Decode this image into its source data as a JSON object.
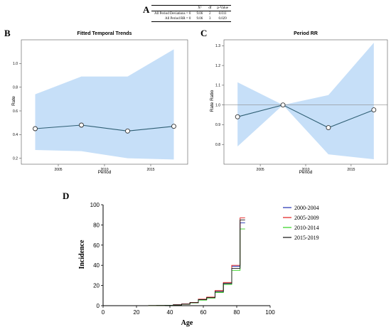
{
  "panel_letters": {
    "a": "A",
    "b": "B",
    "c": "C",
    "d": "D"
  },
  "stat_table": {
    "headers": [
      "",
      "X²",
      "df",
      "p-Value"
    ],
    "rows": [
      [
        "All Period Deviations = 0",
        "9.06",
        "2",
        "0.011"
      ],
      [
        "All Period RR = 0",
        "9.06",
        "3",
        "0.029"
      ]
    ]
  },
  "chart_data": [
    {
      "type": "line",
      "title": "Fitted Temporal Trends",
      "xlabel": "Period",
      "ylabel": "Rate",
      "x": [
        2002.5,
        2007.5,
        2012.5,
        2017.5
      ],
      "xlim": [
        2001,
        2019
      ],
      "ylim": [
        0.15,
        1.2
      ],
      "xticks": [
        2005,
        2010,
        2015
      ],
      "yticks": [
        0.2,
        0.4,
        0.6,
        0.8,
        1.0
      ],
      "ytick_labels": [
        "0.2",
        "0.4",
        "0.6",
        "0.8",
        "1.0"
      ],
      "series": [
        {
          "values": [
            0.45,
            0.48,
            0.43,
            0.47
          ],
          "lower": [
            0.27,
            0.26,
            0.2,
            0.19
          ],
          "upper": [
            0.74,
            0.89,
            0.89,
            1.12
          ]
        }
      ],
      "line_color": "#2f5f74",
      "band_color": "#c6dff8",
      "reference_line": null,
      "grid": false
    },
    {
      "type": "line",
      "title": "Period RR",
      "xlabel": "Period",
      "ylabel": "Rate Ratio",
      "x": [
        2002.5,
        2007.5,
        2012.5,
        2017.5
      ],
      "xlim": [
        2001,
        2019
      ],
      "ylim": [
        0.7,
        1.33
      ],
      "xticks": [
        2005,
        2010,
        2015
      ],
      "yticks": [
        0.8,
        0.9,
        1.0,
        1.1,
        1.2,
        1.3
      ],
      "ytick_labels": [
        "0.8",
        "0.9",
        "1.0",
        "1.1",
        "1.2",
        "1.3"
      ],
      "series": [
        {
          "values": [
            0.94,
            1.0,
            0.885,
            0.975
          ],
          "lower": [
            0.79,
            1.0,
            0.75,
            0.725
          ],
          "upper": [
            1.115,
            1.0,
            1.05,
            1.315
          ]
        }
      ],
      "line_color": "#2f5f74",
      "band_color": "#c6dff8",
      "reference_line": 1.0,
      "grid": false
    },
    {
      "type": "line",
      "title": "",
      "xlabel": "Age",
      "ylabel": "Incidence",
      "xlim": [
        0,
        100
      ],
      "ylim": [
        0,
        100
      ],
      "xticks": [
        0,
        20,
        40,
        60,
        80,
        100
      ],
      "yticks": [
        0,
        20,
        40,
        60,
        80,
        100
      ],
      "x": [
        27,
        32,
        37,
        42,
        47,
        52,
        57,
        62,
        67,
        72,
        77,
        82,
        85
      ],
      "step": "post",
      "series": [
        {
          "name": "2000-2004",
          "color": "#1f2fb0",
          "values": [
            0.1,
            0.2,
            0.4,
            0.8,
            1.6,
            3.0,
            6.0,
            8.0,
            14.0,
            22.0,
            39.0,
            82.0,
            82.0
          ]
        },
        {
          "name": "2005-2009",
          "color": "#e11b1b",
          "values": [
            0.1,
            0.2,
            0.4,
            0.9,
            1.7,
            3.2,
            6.5,
            8.5,
            15.0,
            23.0,
            40.0,
            87.0,
            87.0
          ]
        },
        {
          "name": "2010-2014",
          "color": "#2fd11d",
          "values": [
            0.1,
            0.2,
            0.3,
            0.7,
            1.4,
            2.8,
            5.5,
            7.5,
            13.0,
            21.0,
            35.0,
            76.0,
            76.0
          ]
        },
        {
          "name": "2015-2019",
          "color": "#111111",
          "values": [
            0.1,
            0.2,
            0.4,
            0.8,
            1.5,
            3.0,
            6.0,
            8.0,
            14.0,
            22.0,
            37.0,
            85.0,
            85.0
          ]
        }
      ],
      "legend": "top-right",
      "grid": false
    }
  ]
}
